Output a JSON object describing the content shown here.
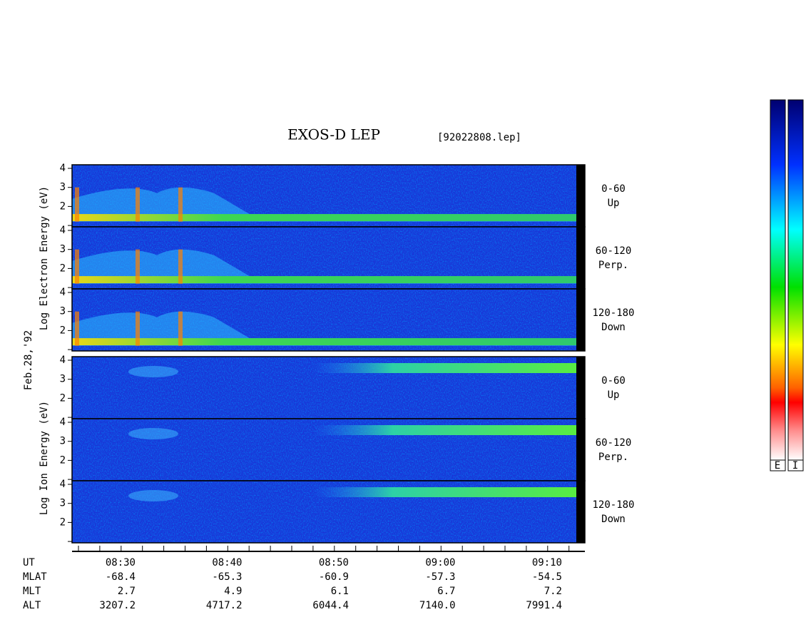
{
  "title": "EXOS-D LEP",
  "file": "[92022808.lep]",
  "date_label": "Feb.28,'92",
  "electron_ylabel": "Log Electron Energy (eV)",
  "ion_ylabel": "Log Ion Energy (eV)",
  "panels": [
    {
      "species": "electron",
      "pitch": "0-60",
      "direction": "Up",
      "yticks": [
        2,
        3,
        4
      ]
    },
    {
      "species": "electron",
      "pitch": "60-120",
      "direction": "Perp.",
      "yticks": [
        2,
        3,
        4
      ]
    },
    {
      "species": "electron",
      "pitch": "120-180",
      "direction": "Down",
      "yticks": [
        2,
        3,
        4
      ]
    },
    {
      "species": "ion",
      "pitch": "0-60",
      "direction": "Up",
      "yticks": [
        2,
        3,
        4
      ]
    },
    {
      "species": "ion",
      "pitch": "60-120",
      "direction": "Perp.",
      "yticks": [
        2,
        3,
        4
      ]
    },
    {
      "species": "ion",
      "pitch": "120-180",
      "direction": "Down",
      "yticks": [
        2,
        3,
        4
      ]
    }
  ],
  "ephemeris": {
    "row_labels": [
      "UT",
      "MLAT",
      "MLT",
      "ALT"
    ],
    "columns": [
      [
        "08:30",
        "-68.4",
        "2.7",
        "3207.2"
      ],
      [
        "08:40",
        "-65.3",
        "4.9",
        "4717.2"
      ],
      [
        "08:50",
        "-60.9",
        "6.1",
        "6044.4"
      ],
      [
        "09:00",
        "-57.3",
        "6.7",
        "7140.0"
      ],
      [
        "09:10",
        "-54.5",
        "7.2",
        "7991.4"
      ]
    ]
  },
  "colorbar_labels": [
    "E",
    "I"
  ]
}
